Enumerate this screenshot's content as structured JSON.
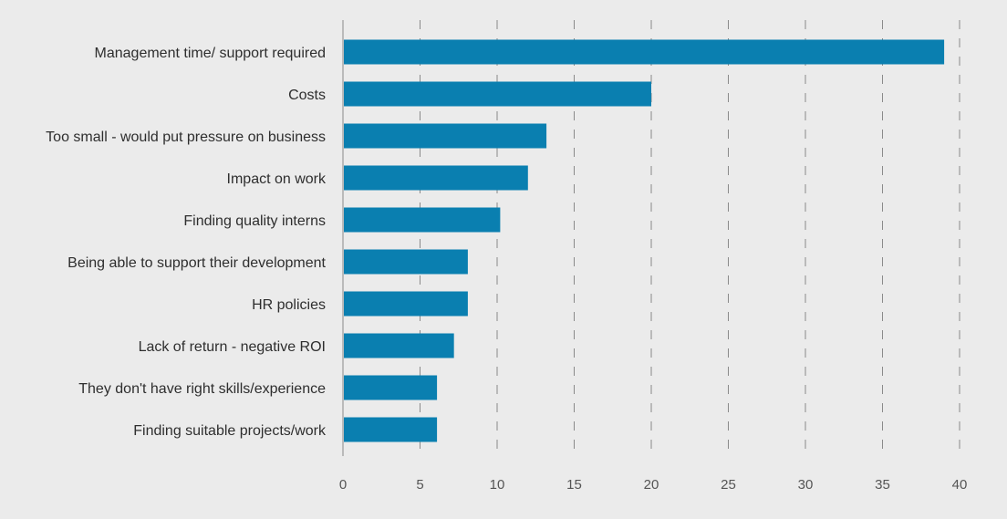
{
  "chart_data": {
    "type": "bar",
    "orientation": "horizontal",
    "categories": [
      "Management time/ support required",
      "Costs",
      "Too small - would put pressure on business",
      "Impact on work",
      "Finding quality interns",
      "Being able to support their development",
      "HR policies",
      "Lack of return - negative ROI",
      "They don't have right skills/experience",
      "Finding suitable projects/work"
    ],
    "values": [
      39,
      20,
      13.2,
      12,
      10.2,
      8.1,
      8.1,
      7.2,
      6.1,
      6.1
    ],
    "xlim": [
      0,
      40
    ],
    "xticks": [
      "0",
      "5",
      "10",
      "15",
      "20",
      "25",
      "30",
      "35",
      "40"
    ],
    "grid": "vertical dashed",
    "legend": "none",
    "title": "",
    "xlabel": "",
    "ylabel": ""
  },
  "colors": {
    "background": "#ebebeb",
    "bar": "#0a7fb0",
    "grid": "#8a8a8a",
    "axis": "#8a8a8a"
  }
}
